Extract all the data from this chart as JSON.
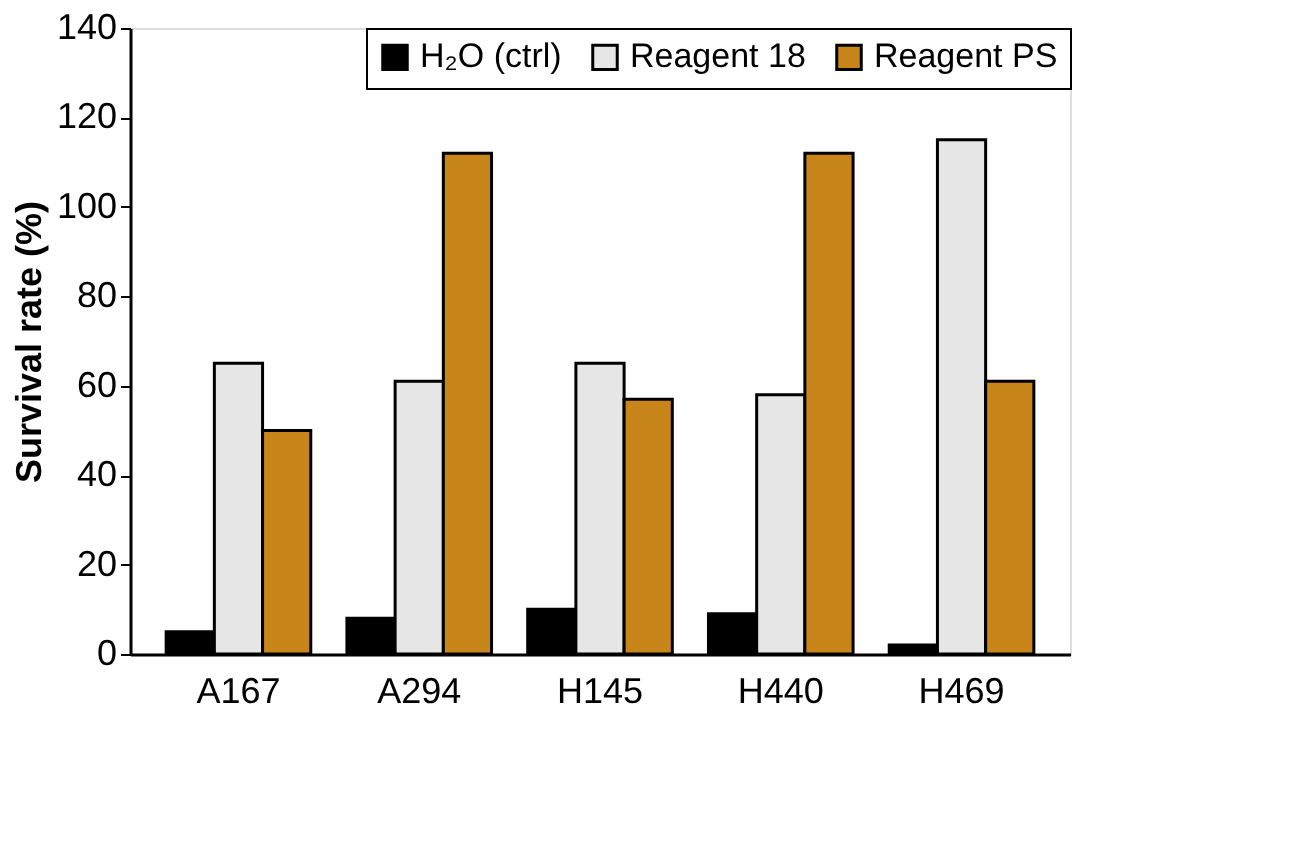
{
  "chart_data": {
    "type": "bar",
    "ylabel": "Survival rate (%)",
    "categories": [
      "A167",
      "A294",
      "H145",
      "H440",
      "H469"
    ],
    "series": [
      {
        "name": "H₂O (ctrl)",
        "color": "#000000",
        "values": [
          5,
          8,
          10,
          9,
          2
        ]
      },
      {
        "name": "Reagent 18",
        "color": "#e6e6e6",
        "values": [
          65,
          61,
          65,
          58,
          115
        ]
      },
      {
        "name": "Reagent PS",
        "color": "#c8861a",
        "values": [
          50,
          112,
          57,
          112,
          61
        ]
      }
    ],
    "ylim": [
      0,
      140
    ],
    "yticks": [
      0,
      20,
      40,
      60,
      80,
      100,
      120,
      140
    ],
    "grid": false,
    "legend": "top right"
  }
}
